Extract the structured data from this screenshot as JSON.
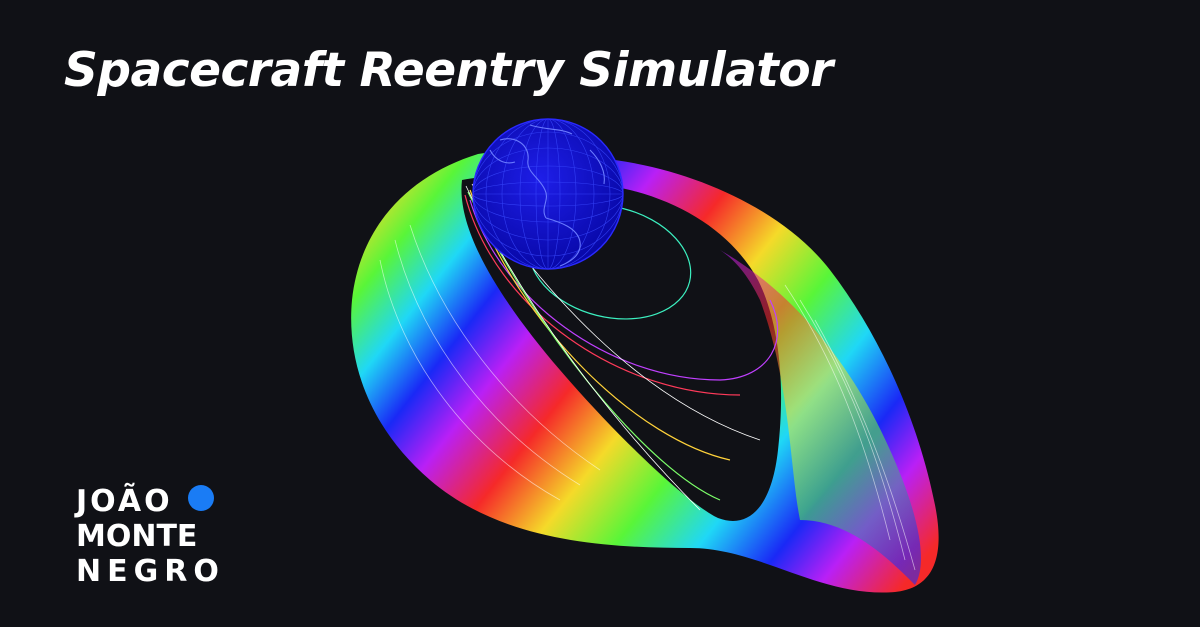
{
  "header": {
    "title": "Spacecraft Reentry Simulator"
  },
  "logo": {
    "line1": "JOÃO",
    "line2": "MONTE",
    "line3": "NEGRO",
    "dot_color": "#1a7cf5"
  },
  "artwork": {
    "globe_color": "#1010d8",
    "ribbon_palette": [
      "#ff2a2a",
      "#ffe22a",
      "#5cff3a",
      "#20e0ff",
      "#1a2aff",
      "#c020ff"
    ]
  },
  "theme": {
    "background": "#101116",
    "text": "#ffffff"
  }
}
